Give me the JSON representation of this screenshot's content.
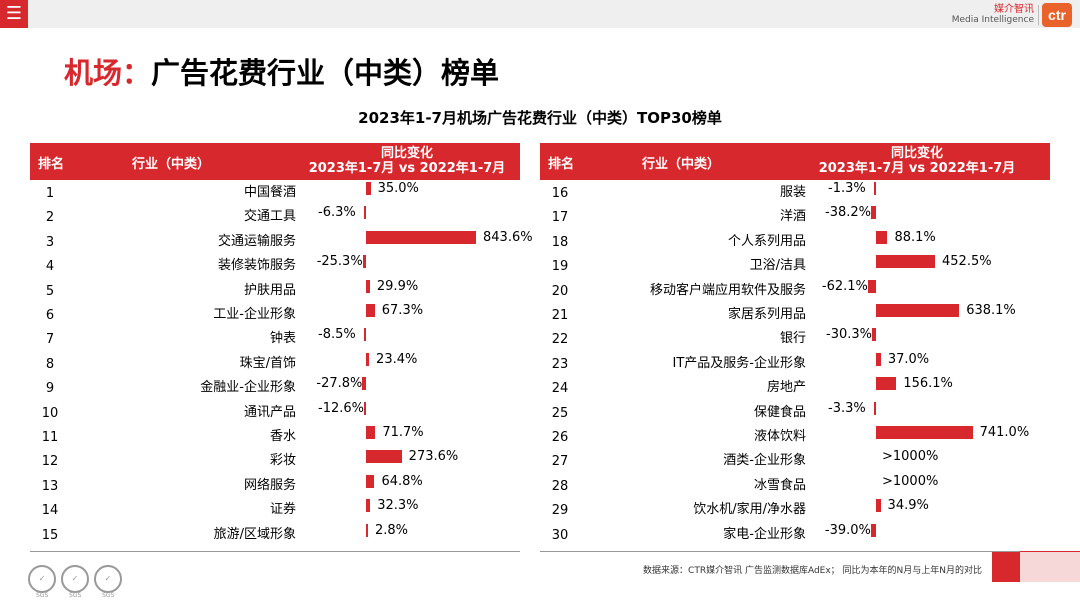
{
  "header": {
    "menu_icon": "hamburger-menu-icon",
    "brand_cn": "媒介智讯",
    "brand_en": "Media Intelligence",
    "logo_text": "ctr",
    "accent_color": "#d7282d"
  },
  "page_title_prefix": "机场：",
  "page_title_main": "广告花费行业（中类）榜单",
  "chart_data": {
    "type": "bar",
    "title": "2023年1-7月机场广告花费行业（中类）TOP30榜单",
    "columns": {
      "rank": "排名",
      "industry": "行业（中类）",
      "change_line1": "同比变化",
      "change_line2": "2023年1-7月 vs 2022年1-7月"
    },
    "unit": "%",
    "series": [
      {
        "name": "同比变化",
        "color": "#d7282d"
      }
    ],
    "rows": [
      {
        "rank": "1",
        "category": "中国餐酒",
        "value": 35.0,
        "label": "35.0%"
      },
      {
        "rank": "2",
        "category": "交通工具",
        "value": -6.3,
        "label": "-6.3%"
      },
      {
        "rank": "3",
        "category": "交通运输服务",
        "value": 843.6,
        "label": "843.6%"
      },
      {
        "rank": "4",
        "category": "装修装饰服务",
        "value": -25.3,
        "label": "-25.3%"
      },
      {
        "rank": "5",
        "category": "护肤用品",
        "value": 29.9,
        "label": "29.9%"
      },
      {
        "rank": "6",
        "category": "工业-企业形象",
        "value": 67.3,
        "label": "67.3%"
      },
      {
        "rank": "7",
        "category": "钟表",
        "value": -8.5,
        "label": "-8.5%"
      },
      {
        "rank": "8",
        "category": "珠宝/首饰",
        "value": 23.4,
        "label": "23.4%"
      },
      {
        "rank": "9",
        "category": "金融业-企业形象",
        "value": -27.8,
        "label": "-27.8%"
      },
      {
        "rank": "10",
        "category": "通讯产品",
        "value": -12.6,
        "label": "-12.6%"
      },
      {
        "rank": "11",
        "category": "香水",
        "value": 71.7,
        "label": "71.7%"
      },
      {
        "rank": "12",
        "category": "彩妆",
        "value": 273.6,
        "label": "273.6%"
      },
      {
        "rank": "13",
        "category": "网络服务",
        "value": 64.8,
        "label": "64.8%"
      },
      {
        "rank": "14",
        "category": "证券",
        "value": 32.3,
        "label": "32.3%"
      },
      {
        "rank": "15",
        "category": "旅游/区域形象",
        "value": 2.8,
        "label": "2.8%"
      },
      {
        "rank": "16",
        "category": "服装",
        "value": -1.3,
        "label": "-1.3%"
      },
      {
        "rank": "17",
        "category": "洋酒",
        "value": -38.2,
        "label": "-38.2%"
      },
      {
        "rank": "18",
        "category": "个人系列用品",
        "value": 88.1,
        "label": "88.1%"
      },
      {
        "rank": "19",
        "category": "卫浴/洁具",
        "value": 452.5,
        "label": "452.5%"
      },
      {
        "rank": "20",
        "category": "移动客户端应用软件及服务",
        "value": -62.1,
        "label": "-62.1%"
      },
      {
        "rank": "21",
        "category": "家居系列用品",
        "value": 638.1,
        "label": "638.1%"
      },
      {
        "rank": "22",
        "category": "银行",
        "value": -30.3,
        "label": "-30.3%"
      },
      {
        "rank": "23",
        "category": "IT产品及服务-企业形象",
        "value": 37.0,
        "label": "37.0%"
      },
      {
        "rank": "24",
        "category": "房地产",
        "value": 156.1,
        "label": "156.1%"
      },
      {
        "rank": "25",
        "category": "保健食品",
        "value": -3.3,
        "label": "-3.3%"
      },
      {
        "rank": "26",
        "category": "液体饮料",
        "value": 741.0,
        "label": "741.0%"
      },
      {
        "rank": "27",
        "category": "酒类-企业形象",
        "value": null,
        "label": ">1000%"
      },
      {
        "rank": "28",
        "category": "冰雪食品",
        "value": null,
        "label": ">1000%"
      },
      {
        "rank": "29",
        "category": "饮水机/家用/净水器",
        "value": 34.9,
        "label": "34.9%"
      },
      {
        "rank": "30",
        "category": "家电-企业形象",
        "value": -39.0,
        "label": "-39.0%"
      }
    ]
  },
  "footer": {
    "source": "数据来源：CTR媒介智讯 广告监测数据库AdEx； 同比为本年的N月与上年N月的对比",
    "cert_label": "SGS"
  }
}
